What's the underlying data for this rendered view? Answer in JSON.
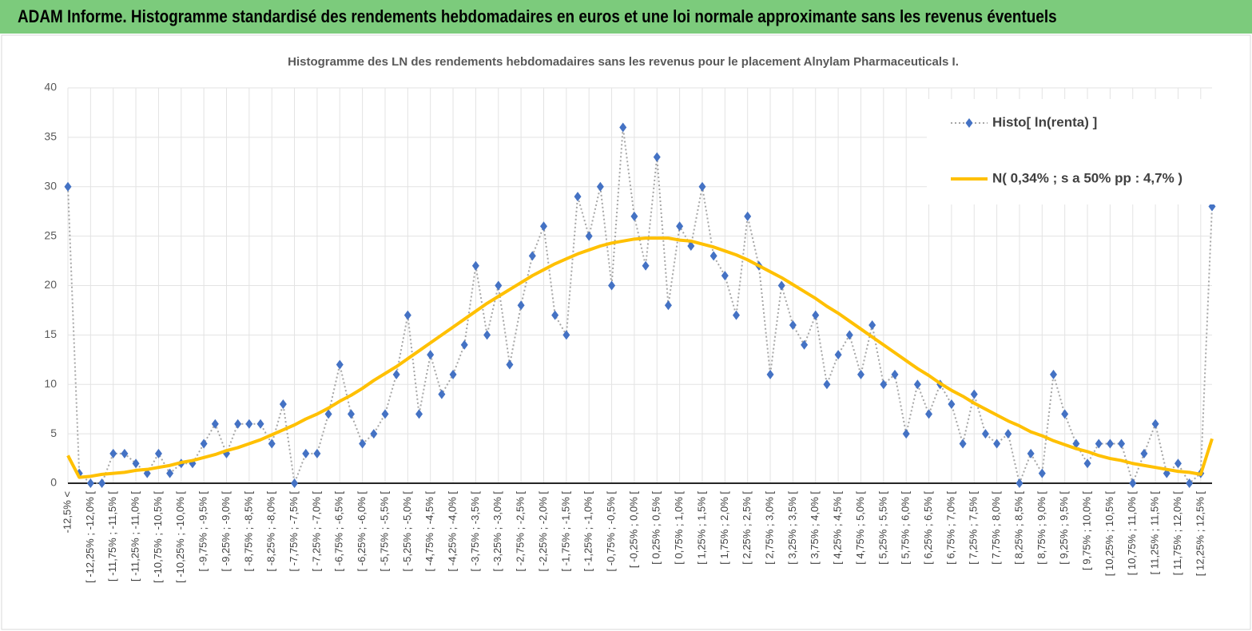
{
  "header": {
    "title": "ADAM Informe. Histogramme standardisé des rendements hebdomadaires en euros et une loi normale approximante sans les revenus éventuels"
  },
  "chart_data": {
    "type": "line",
    "title": "Histogramme des LN des rendements hebdomadaires sans les revenus pour le placement Alnylam Pharmaceuticals I.",
    "categories": [
      "-12,5% <",
      null,
      "[ -12,25% ; -12,0% [",
      null,
      "[ -11,75% ; -11,5% [",
      null,
      "[ -11,25% ; -11,0% [",
      null,
      "[ -10,75% ; -10,5% [",
      null,
      "[ -10,25% ; -10,0% [",
      null,
      "[ -9,75% ; -9,5% [",
      null,
      "[ -9,25% ; -9,0% [",
      null,
      "[ -8,75% ; -8,5% [",
      null,
      "[ -8,25% ; -8,0% [",
      null,
      "[ -7,75% ; -7,5% [",
      null,
      "[ -7,25% ; -7,0% [",
      null,
      "[ -6,75% ; -6,5% [",
      null,
      "[ -6,25% ; -6,0% [",
      null,
      "[ -5,75% ; -5,5% [",
      null,
      "[ -5,25% ; -5,0% [",
      null,
      "[ -4,75% ; -4,5% [",
      null,
      "[ -4,25% ; -4,0% [",
      null,
      "[ -3,75% ; -3,5% [",
      null,
      "[ -3,25% ; -3,0% [",
      null,
      "[ -2,75% ; -2,5% [",
      null,
      "[ -2,25% ; -2,0% [",
      null,
      "[ -1,75% ; -1,5% [",
      null,
      "[ -1,25% ; -1,0% [",
      null,
      "[ -0,75% ; -0,5% [",
      null,
      "[ -0,25% ; 0,0% [",
      null,
      "[ 0,25% ; 0,5% [",
      null,
      "[ 0,75% ; 1,0% [",
      null,
      "[ 1,25% ; 1,5% [",
      null,
      "[ 1,75% ; 2,0% [",
      null,
      "[ 2,25% ; 2,5% [",
      null,
      "[ 2,75% ; 3,0% [",
      null,
      "[ 3,25% ; 3,5% [",
      null,
      "[ 3,75% ; 4,0% [",
      null,
      "[ 4,25% ; 4,5% [",
      null,
      "[ 4,75% ; 5,0% [",
      null,
      "[ 5,25% ; 5,5% [",
      null,
      "[ 5,75% ; 6,0% [",
      null,
      "[ 6,25% ; 6,5% [",
      null,
      "[ 6,75% ; 7,0% [",
      null,
      "[ 7,25% ; 7,5% [",
      null,
      "[ 7,75% ; 8,0% [",
      null,
      "[ 8,25% ; 8,5% [",
      null,
      "[ 8,75% ; 9,0% [",
      null,
      "[ 9,25% ; 9,5% [",
      null,
      "[ 9,75% ; 10,0% [",
      null,
      "[ 10,25% ; 10,5% [",
      null,
      "[ 10,75% ; 11,0% [",
      null,
      "[ 11,25% ; 11,5% [",
      null,
      "[ 11,75% ; 12,0% [",
      null,
      "[ 12,25% ; 12,5% [",
      null
    ],
    "series": [
      {
        "name": "Histo[ ln(renta) ]",
        "color": "#4472c4",
        "line_color": "#a6a6a6",
        "line_style": "dotted",
        "marker": "diamond",
        "values": [
          30,
          1,
          0,
          0,
          3,
          3,
          2,
          1,
          3,
          1,
          2,
          2,
          4,
          6,
          3,
          6,
          6,
          6,
          4,
          8,
          0,
          3,
          3,
          7,
          12,
          7,
          4,
          5,
          7,
          11,
          17,
          7,
          13,
          9,
          11,
          14,
          22,
          15,
          20,
          12,
          18,
          23,
          26,
          17,
          15,
          29,
          25,
          30,
          20,
          36,
          27,
          22,
          33,
          18,
          26,
          24,
          30,
          23,
          21,
          17,
          27,
          22,
          11,
          20,
          16,
          14,
          17,
          10,
          13,
          15,
          11,
          16,
          10,
          11,
          5,
          10,
          7,
          10,
          8,
          4,
          9,
          5,
          4,
          5,
          0,
          3,
          1,
          11,
          7,
          4,
          2,
          4,
          4,
          4,
          0,
          3,
          6,
          1,
          2,
          0,
          1,
          28
        ]
      },
      {
        "name": "N( 0,34% ; s a 50% pp : 4,7% )",
        "color": "#ffc000",
        "line_style": "solid",
        "marker": "none",
        "values": [
          2.8,
          0.6,
          0.7,
          0.9,
          1.0,
          1.1,
          1.3,
          1.4,
          1.6,
          1.8,
          2.1,
          2.3,
          2.6,
          2.9,
          3.3,
          3.6,
          4.0,
          4.4,
          4.9,
          5.4,
          5.9,
          6.5,
          7.0,
          7.6,
          8.3,
          8.9,
          9.6,
          10.4,
          11.1,
          11.8,
          12.6,
          13.4,
          14.2,
          15.0,
          15.8,
          16.6,
          17.4,
          18.2,
          18.9,
          19.6,
          20.3,
          21.0,
          21.6,
          22.2,
          22.7,
          23.2,
          23.6,
          24.0,
          24.3,
          24.5,
          24.7,
          24.8,
          24.8,
          24.8,
          24.6,
          24.5,
          24.2,
          23.9,
          23.5,
          23.1,
          22.6,
          22.0,
          21.4,
          20.8,
          20.1,
          19.4,
          18.7,
          17.9,
          17.2,
          16.4,
          15.6,
          14.8,
          14.0,
          13.2,
          12.4,
          11.6,
          10.9,
          10.1,
          9.4,
          8.8,
          8.1,
          7.5,
          6.9,
          6.3,
          5.8,
          5.2,
          4.8,
          4.3,
          3.9,
          3.5,
          3.2,
          2.8,
          2.5,
          2.3,
          2.0,
          1.8,
          1.6,
          1.4,
          1.2,
          1.1,
          0.9,
          4.5
        ]
      }
    ],
    "ylim": [
      0,
      40
    ],
    "yticks": [
      0,
      5,
      10,
      15,
      20,
      25,
      30,
      35,
      40
    ],
    "grid": true,
    "legend": "top-right"
  }
}
